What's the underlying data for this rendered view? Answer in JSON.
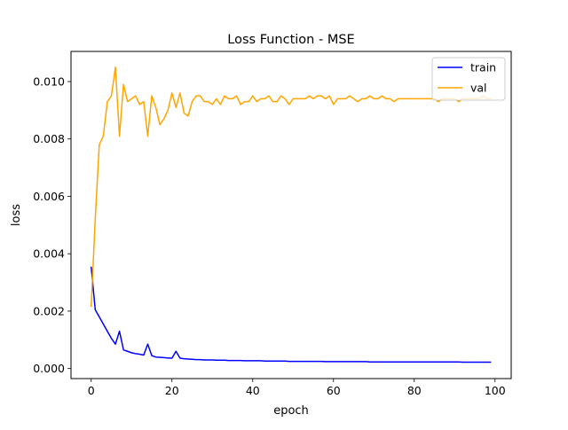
{
  "chart_data": {
    "type": "line",
    "title": "Loss Function - MSE",
    "xlabel": "epoch",
    "ylabel": "loss",
    "xlim": [
      -5,
      104
    ],
    "ylim": [
      -0.00035,
      0.01105
    ],
    "xticks": [
      0,
      20,
      40,
      60,
      80,
      100
    ],
    "xtick_labels": [
      "0",
      "20",
      "40",
      "60",
      "80",
      "100"
    ],
    "yticks": [
      0.0,
      0.002,
      0.004,
      0.006,
      0.008,
      0.01
    ],
    "ytick_labels": [
      "0.000",
      "0.002",
      "0.004",
      "0.006",
      "0.008",
      "0.010"
    ],
    "grid": false,
    "legend_position": "top-right",
    "series": [
      {
        "name": "train",
        "color": "#0000ff",
        "x": [
          0,
          1,
          2,
          3,
          4,
          5,
          6,
          7,
          8,
          9,
          10,
          11,
          12,
          13,
          14,
          15,
          16,
          17,
          18,
          19,
          20,
          21,
          22,
          23,
          24,
          25,
          26,
          27,
          28,
          29,
          30,
          31,
          32,
          33,
          34,
          35,
          36,
          37,
          38,
          39,
          40,
          41,
          42,
          43,
          44,
          45,
          46,
          47,
          48,
          49,
          50,
          51,
          52,
          53,
          54,
          55,
          56,
          57,
          58,
          59,
          60,
          61,
          62,
          63,
          64,
          65,
          66,
          67,
          68,
          69,
          70,
          71,
          72,
          73,
          74,
          75,
          76,
          77,
          78,
          79,
          80,
          81,
          82,
          83,
          84,
          85,
          86,
          87,
          88,
          89,
          90,
          91,
          92,
          93,
          94,
          95,
          96,
          97,
          98,
          99
        ],
        "y": [
          0.00355,
          0.00205,
          0.0018,
          0.00155,
          0.0013,
          0.00105,
          0.00085,
          0.0013,
          0.00065,
          0.0006,
          0.00055,
          0.00052,
          0.0005,
          0.00047,
          0.00085,
          0.00045,
          0.0004,
          0.00039,
          0.00038,
          0.00037,
          0.00036,
          0.0006,
          0.00036,
          0.00034,
          0.00033,
          0.00032,
          0.00031,
          0.00031,
          0.0003,
          0.0003,
          0.0003,
          0.00029,
          0.00029,
          0.00029,
          0.00028,
          0.00028,
          0.00028,
          0.00028,
          0.00027,
          0.00027,
          0.00027,
          0.00027,
          0.00027,
          0.00026,
          0.00026,
          0.00026,
          0.00026,
          0.00026,
          0.00026,
          0.00025,
          0.00025,
          0.00025,
          0.00025,
          0.00025,
          0.00025,
          0.00025,
          0.00025,
          0.00025,
          0.00024,
          0.00024,
          0.00024,
          0.00024,
          0.00024,
          0.00024,
          0.00024,
          0.00024,
          0.00024,
          0.00024,
          0.00024,
          0.00023,
          0.00023,
          0.00023,
          0.00023,
          0.00023,
          0.00023,
          0.00023,
          0.00023,
          0.00023,
          0.00023,
          0.00023,
          0.00023,
          0.00023,
          0.00023,
          0.00023,
          0.00023,
          0.00023,
          0.00023,
          0.00023,
          0.00023,
          0.00023,
          0.00023,
          0.00023,
          0.00022,
          0.00022,
          0.00022,
          0.00022,
          0.00022,
          0.00022,
          0.00022,
          0.00022
        ]
      },
      {
        "name": "val",
        "color": "#ffa500",
        "x": [
          0,
          1,
          2,
          3,
          4,
          5,
          6,
          7,
          8,
          9,
          10,
          11,
          12,
          13,
          14,
          15,
          16,
          17,
          18,
          19,
          20,
          21,
          22,
          23,
          24,
          25,
          26,
          27,
          28,
          29,
          30,
          31,
          32,
          33,
          34,
          35,
          36,
          37,
          38,
          39,
          40,
          41,
          42,
          43,
          44,
          45,
          46,
          47,
          48,
          49,
          50,
          51,
          52,
          53,
          54,
          55,
          56,
          57,
          58,
          59,
          60,
          61,
          62,
          63,
          64,
          65,
          66,
          67,
          68,
          69,
          70,
          71,
          72,
          73,
          74,
          75,
          76,
          77,
          78,
          79,
          80,
          81,
          82,
          83,
          84,
          85,
          86,
          87,
          88,
          89,
          90,
          91,
          92,
          93,
          94,
          95,
          96,
          97,
          98,
          99
        ],
        "y": [
          0.00215,
          0.0052,
          0.0078,
          0.0081,
          0.0093,
          0.0095,
          0.0105,
          0.0081,
          0.0099,
          0.0093,
          0.0094,
          0.0095,
          0.0092,
          0.0093,
          0.0081,
          0.0095,
          0.0091,
          0.0085,
          0.0087,
          0.009,
          0.0096,
          0.0091,
          0.0096,
          0.0089,
          0.0088,
          0.0093,
          0.0095,
          0.0095,
          0.0093,
          0.0093,
          0.0092,
          0.0094,
          0.0092,
          0.0095,
          0.0094,
          0.0094,
          0.0095,
          0.0092,
          0.0093,
          0.0093,
          0.0095,
          0.0093,
          0.0094,
          0.0094,
          0.0095,
          0.0093,
          0.0093,
          0.0095,
          0.0094,
          0.0092,
          0.0094,
          0.0094,
          0.0094,
          0.0094,
          0.0095,
          0.0094,
          0.0095,
          0.0095,
          0.0094,
          0.0095,
          0.0092,
          0.0094,
          0.0094,
          0.0094,
          0.0095,
          0.0094,
          0.0093,
          0.0094,
          0.0094,
          0.0095,
          0.0094,
          0.0094,
          0.0095,
          0.0094,
          0.0094,
          0.0093,
          0.0094,
          0.0094,
          0.0094,
          0.0094,
          0.0094,
          0.0094,
          0.0094,
          0.0094,
          0.0094,
          0.0094,
          0.0093,
          0.0094,
          0.0094,
          0.0094,
          0.0094,
          0.0093,
          0.0094,
          0.0094,
          0.0094,
          0.0094,
          0.0094,
          0.0095,
          0.0094,
          0.0094
        ]
      }
    ]
  }
}
